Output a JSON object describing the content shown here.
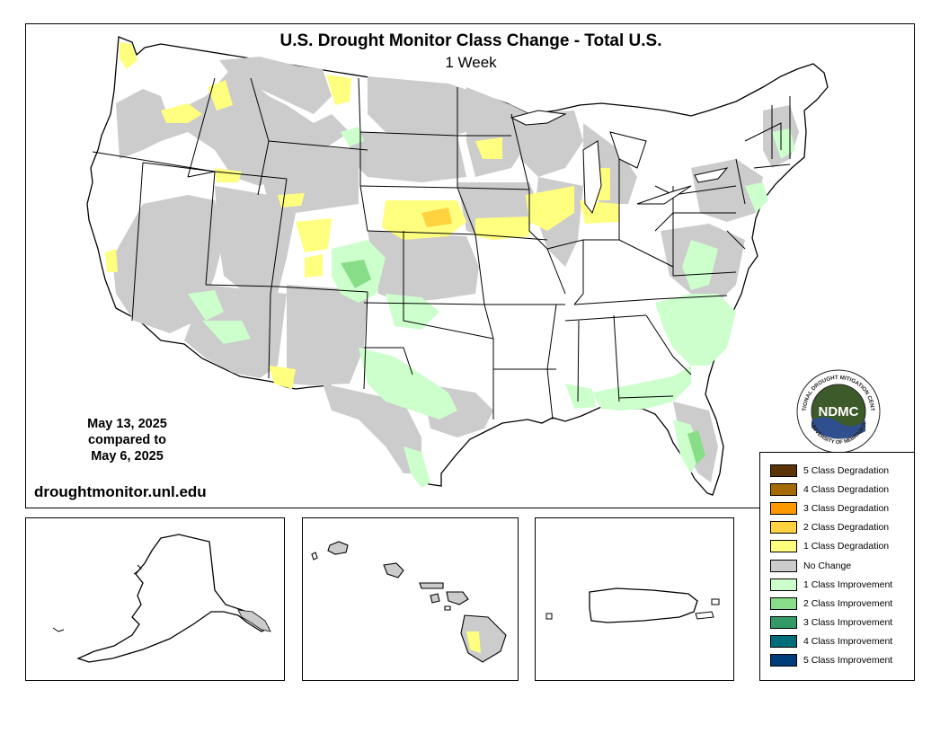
{
  "header": {
    "title": "U.S. Drought Monitor Class Change - Total U.S.",
    "subtitle": "1 Week"
  },
  "dates": {
    "current": "May 13, 2025",
    "compared": "compared to",
    "previous": "May 6, 2025"
  },
  "site_url": "droughtmonitor.unl.edu",
  "logo": {
    "text": "NDMC",
    "ring_text": "NATIONAL DROUGHT MITIGATION CENTER",
    "ring_text_bottom": "UNIVERSITY OF NEBRASKA"
  },
  "legend": {
    "items": [
      {
        "label": "5 Class Degradation",
        "color": "#5a3407"
      },
      {
        "label": "4 Class Degradation",
        "color": "#a66b00"
      },
      {
        "label": "3 Class Degradation",
        "color": "#ff9900"
      },
      {
        "label": "2 Class Degradation",
        "color": "#ffd23f"
      },
      {
        "label": "1 Class Degradation",
        "color": "#ffff7f"
      },
      {
        "label": "No Change",
        "color": "#cccccc"
      },
      {
        "label": "1 Class Improvement",
        "color": "#ccffcc"
      },
      {
        "label": "2 Class Improvement",
        "color": "#88dd88"
      },
      {
        "label": "3 Class Improvement",
        "color": "#339966"
      },
      {
        "label": "4 Class Improvement",
        "color": "#006d7a"
      },
      {
        "label": "5 Class Improvement",
        "color": "#003d7a"
      }
    ]
  },
  "insets": {
    "alaska": "Alaska",
    "hawaii": "Hawaii",
    "puerto_rico": "Puerto Rico"
  }
}
